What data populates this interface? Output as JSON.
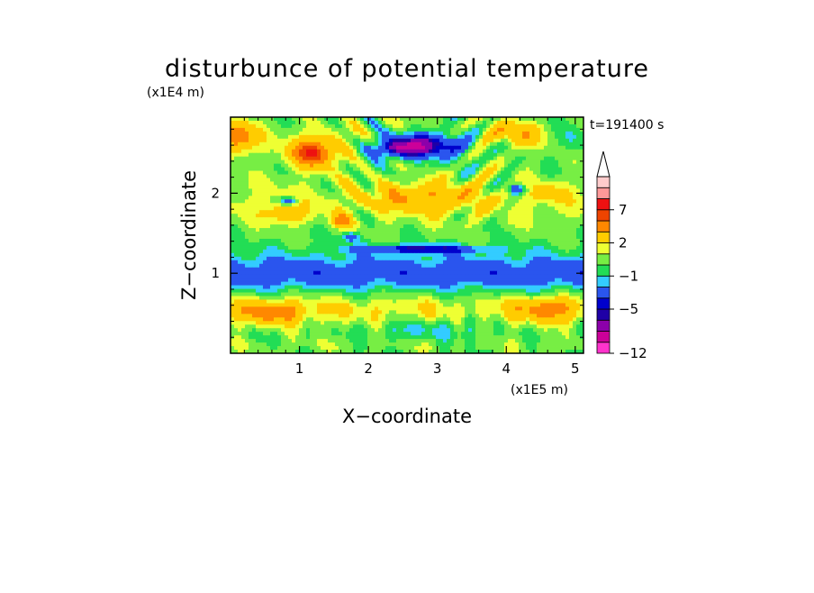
{
  "chart_data": {
    "type": "heatmap",
    "title": "disturbunce of potential temperature",
    "xlabel": "X−coordinate",
    "ylabel": "Z−coordinate",
    "x_scale_label": "(x1E5 m)",
    "y_scale_label": "(x1E4 m)",
    "time_label": "t=191400 s",
    "xlim": [
      0,
      5.12
    ],
    "ylim": [
      0,
      2.95
    ],
    "x_ticks": [
      1,
      2,
      3,
      4,
      5
    ],
    "y_ticks": [
      1,
      2
    ],
    "x_tick_labels": [
      "1",
      "2",
      "3",
      "4",
      "5"
    ],
    "y_tick_labels": [
      "1",
      "2"
    ],
    "colorbar": {
      "levels": [
        -12,
        -10,
        -8,
        -6,
        -5,
        -4,
        -2,
        -1,
        0,
        1,
        2,
        4,
        6,
        7,
        8,
        10
      ],
      "colors": [
        "#ff33cc",
        "#cc0099",
        "#8c00aa",
        "#1f00a6",
        "#0000cc",
        "#2a55ee",
        "#33ccff",
        "#22dd55",
        "#77ee44",
        "#eeff33",
        "#ffcc00",
        "#ff8800",
        "#ee4400",
        "#ee1111",
        "#ff9999",
        "#ffcccc"
      ],
      "labels": [
        {
          "text": "−12",
          "value": -12
        },
        {
          "text": "−5",
          "value": -5
        },
        {
          "text": "−1",
          "value": -1
        },
        {
          "text": "2",
          "value": 2
        },
        {
          "text": "7",
          "value": 7
        }
      ],
      "extend_max": true
    },
    "field_features": [
      {
        "x": 1.2,
        "z": 2.5,
        "sx": 0.35,
        "sz": 0.18,
        "amp": 6.5
      },
      {
        "x": 0.1,
        "z": 2.7,
        "sx": 0.25,
        "sz": 0.2,
        "amp": 5
      },
      {
        "x": 2.8,
        "z": 2.6,
        "sx": 0.6,
        "sz": 0.15,
        "amp": -7.5
      },
      {
        "x": 2.4,
        "z": 2.55,
        "sx": 0.3,
        "sz": 0.1,
        "amp": -4
      },
      {
        "x": 4.1,
        "z": 2.75,
        "sx": 0.4,
        "sz": 0.15,
        "amp": 3
      },
      {
        "x": 4.95,
        "z": 2.7,
        "sx": 0.2,
        "sz": 0.2,
        "amp": -2
      },
      {
        "x": 0.8,
        "z": 1.75,
        "sx": 0.3,
        "sz": 0.12,
        "amp": 3
      },
      {
        "x": 2.8,
        "z": 1.95,
        "sx": 0.8,
        "sz": 0.18,
        "amp": 3
      },
      {
        "x": 0.85,
        "z": 1.9,
        "sx": 0.12,
        "sz": 0.05,
        "amp": -5
      },
      {
        "x": 4.15,
        "z": 2.05,
        "sx": 0.12,
        "sz": 0.07,
        "amp": -5
      },
      {
        "x": 1.6,
        "z": 1.65,
        "sx": 0.15,
        "sz": 0.08,
        "amp": 4
      },
      {
        "x": 4.6,
        "z": 2.0,
        "sx": 0.25,
        "sz": 0.12,
        "amp": 2
      },
      {
        "x": 2.75,
        "z": 1.3,
        "sx": 0.9,
        "sz": 0.05,
        "amp": -5.5
      },
      {
        "x": 1.75,
        "z": 1.45,
        "sx": 0.12,
        "sz": 0.05,
        "amp": -4
      },
      {
        "x": 0.6,
        "z": 0.5,
        "sx": 0.5,
        "sz": 0.15,
        "amp": 3.5
      },
      {
        "x": 4.6,
        "z": 0.55,
        "sx": 0.45,
        "sz": 0.15,
        "amp": 3.5
      },
      {
        "x": 2.7,
        "z": 0.3,
        "sx": 0.6,
        "sz": 0.12,
        "amp": -1.6
      },
      {
        "x": 3.45,
        "z": 0.4,
        "sx": 0.1,
        "sz": 0.3,
        "amp": -1.8
      }
    ]
  }
}
